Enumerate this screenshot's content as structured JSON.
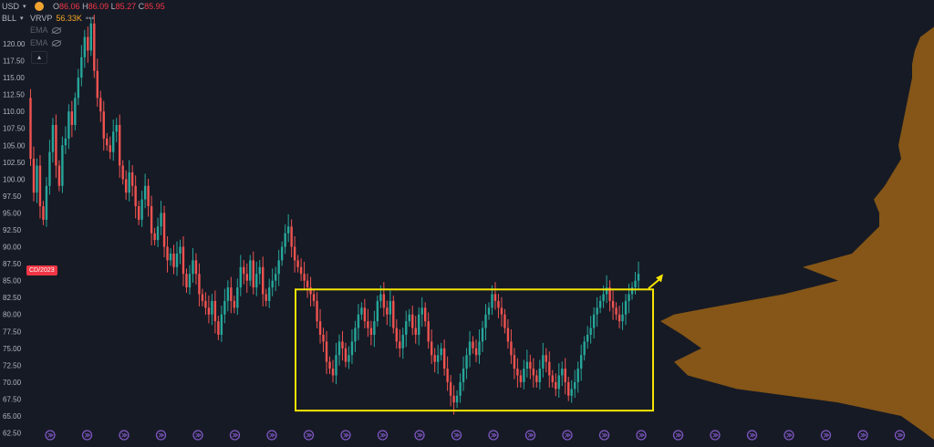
{
  "header": {
    "currency": "USD",
    "symbol": "BLL",
    "ohlc": {
      "o_label": "O",
      "o": "86.06",
      "h_label": "H",
      "h": "86.09",
      "l_label": "L",
      "l": "85.27",
      "c_label": "C",
      "c": "85.95"
    },
    "vrvp_label": "VRVP",
    "vrvp_value": "56.33K",
    "vrvp_more": "•••",
    "indicators": [
      "EMA",
      "EMA"
    ]
  },
  "date_badge": "CD/2023",
  "colors": {
    "background": "#161a25",
    "up": "#26a69a",
    "down": "#ef5350",
    "box": "#f5e400",
    "arrow": "#f5e400",
    "volume_profile": "#8b5a16",
    "axis_text": "#b2b5be",
    "event_icon": "#7e57c2"
  },
  "chart_data": {
    "type": "candlestick",
    "title": "",
    "ylabel": "",
    "yticks": [
      "62.50",
      "65.00",
      "67.50",
      "70.00",
      "72.50",
      "75.00",
      "77.50",
      "80.00",
      "82.50",
      "85.00",
      "87.50",
      "90.00",
      "92.50",
      "95.00",
      "97.50",
      "100.00",
      "102.50",
      "105.00",
      "107.50",
      "110.00",
      "112.50",
      "115.00",
      "117.50",
      "120.00"
    ],
    "ylim": [
      61.5,
      123.5
    ],
    "grid": false,
    "series": [
      {
        "kind": "close_path",
        "points": [
          112,
          103,
          98,
          102,
          96,
          94,
          99,
          104,
          108,
          102,
          99,
          105,
          106,
          110,
          108,
          112,
          115,
          118,
          121,
          119,
          123,
          116,
          112,
          110,
          106,
          105,
          104,
          107,
          108,
          102,
          100,
          98,
          101,
          99,
          96,
          94,
          97,
          99,
          96,
          92,
          91,
          93,
          95,
          90,
          88,
          89,
          87,
          89,
          90,
          86,
          84,
          86,
          88,
          86,
          83,
          82,
          81,
          80,
          82,
          79,
          77,
          80,
          82,
          84,
          82,
          81,
          84,
          87,
          86,
          85,
          88,
          84,
          86,
          87,
          83,
          82,
          84,
          85,
          86,
          88,
          90,
          92,
          93,
          90,
          88,
          87,
          86,
          85,
          84,
          83,
          82,
          79,
          77,
          76,
          73,
          72,
          71,
          74,
          76,
          75,
          73,
          74,
          76,
          78,
          80,
          81,
          79,
          78,
          77,
          79,
          82,
          83,
          81,
          80,
          82,
          78,
          76,
          75,
          77,
          79,
          80,
          78,
          77,
          80,
          81,
          79,
          76,
          74,
          73,
          74,
          75,
          72,
          70,
          68,
          67,
          68,
          70,
          72,
          74,
          76,
          75,
          74,
          76,
          78,
          80,
          81,
          83,
          82,
          81,
          80,
          78,
          76,
          74,
          72,
          71,
          70,
          72,
          73,
          72,
          71,
          70,
          72,
          74,
          73,
          71,
          70,
          69,
          71,
          72,
          70,
          68,
          69,
          70,
          72,
          74,
          76,
          77,
          78,
          80,
          81,
          82,
          83,
          84,
          82,
          81,
          80,
          79,
          80,
          82,
          83,
          84,
          85,
          86
        ]
      }
    ],
    "range_box": {
      "y_top": 83.7,
      "y_bottom": 65.8
    },
    "breakout_arrow": {
      "direction": "up-right"
    },
    "volume_profile": {
      "price_bins": [
        63,
        65,
        67,
        69,
        71,
        73,
        75,
        77,
        79,
        80,
        81,
        83,
        85,
        87,
        89,
        91,
        93,
        95,
        97,
        99,
        101,
        103,
        105,
        107,
        109,
        111,
        113,
        115,
        117,
        119,
        121
      ],
      "relative_volume": [
        0.05,
        0.12,
        0.35,
        0.72,
        0.9,
        0.95,
        0.85,
        0.92,
        1.0,
        0.95,
        0.82,
        0.55,
        0.35,
        0.48,
        0.3,
        0.25,
        0.2,
        0.2,
        0.22,
        0.18,
        0.15,
        0.12,
        0.13,
        0.12,
        0.11,
        0.1,
        0.09,
        0.08,
        0.08,
        0.07,
        0.05
      ]
    },
    "event_markers_count": 24
  }
}
